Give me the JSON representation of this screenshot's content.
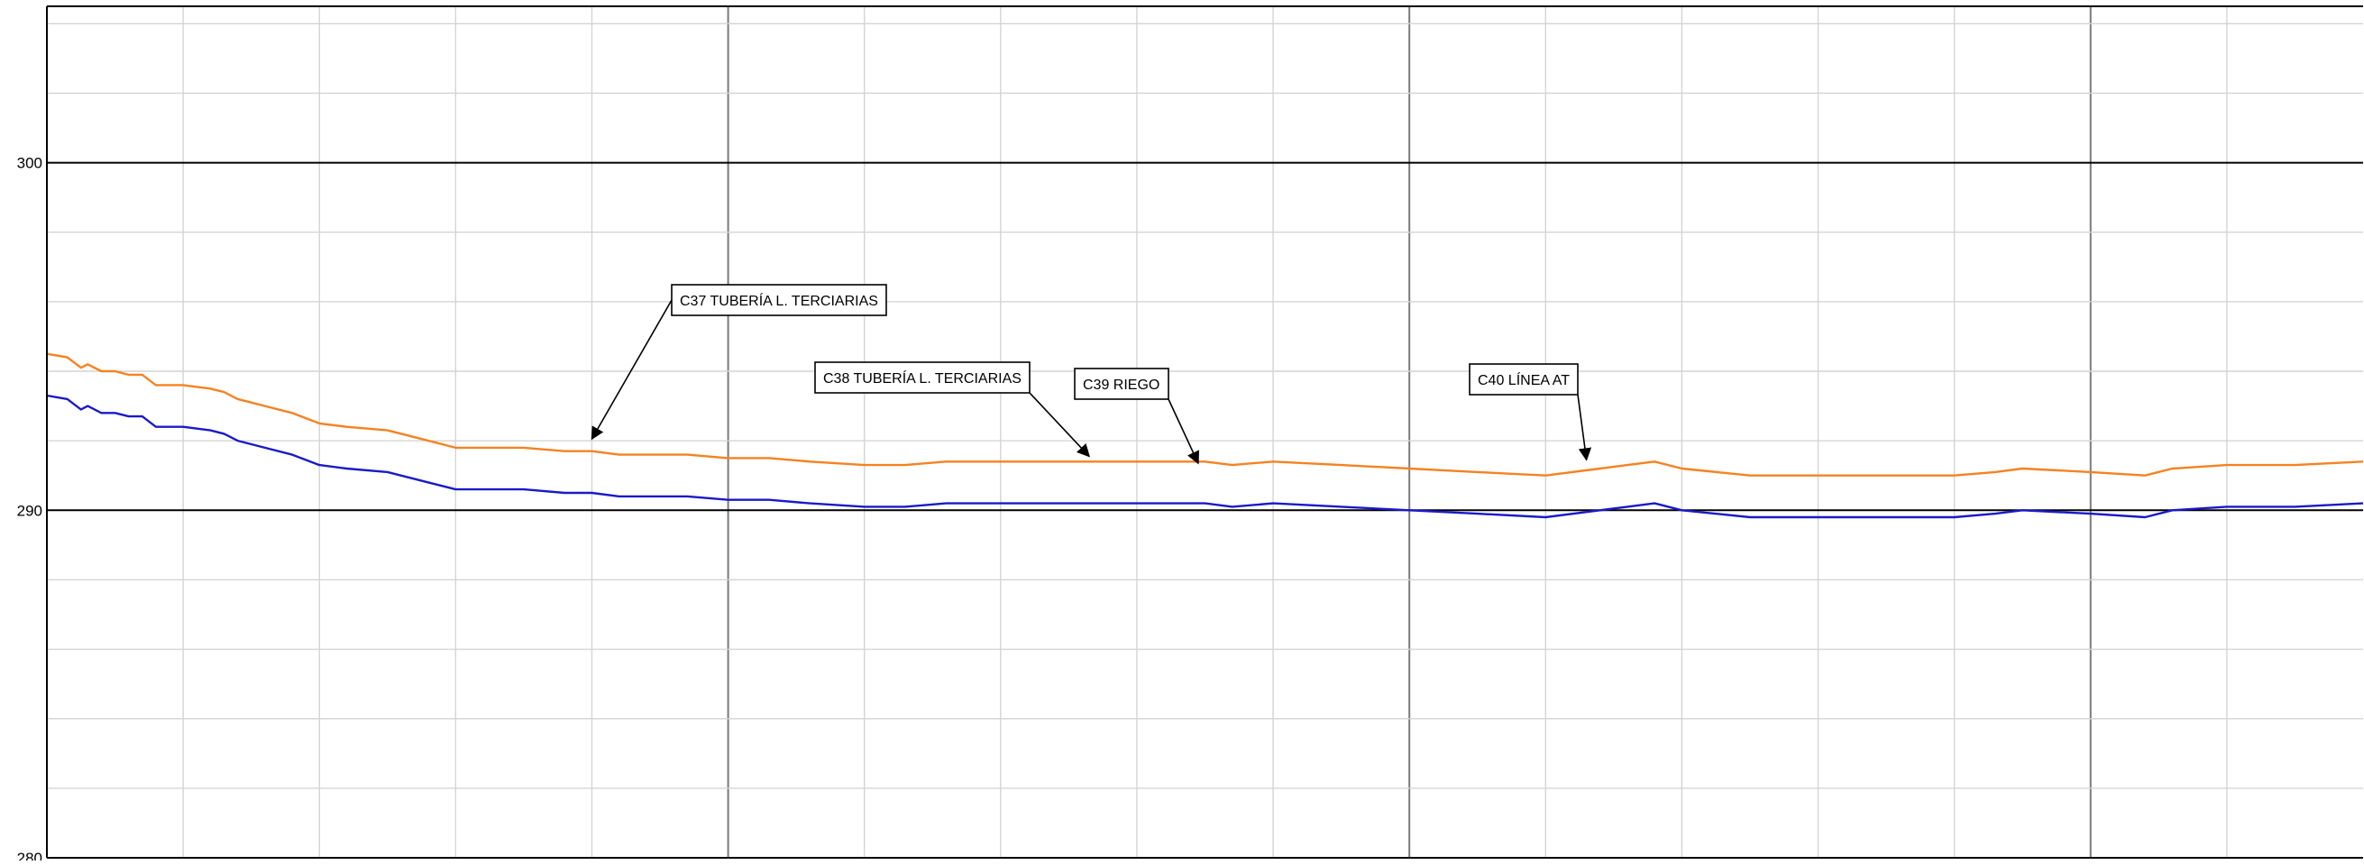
{
  "chart_data": {
    "type": "line",
    "title": "",
    "xlabel": "",
    "ylabel": "",
    "xlim": [
      0,
      1700
    ],
    "ylim": [
      280,
      304.5
    ],
    "y_ticks": [
      280,
      290,
      300
    ],
    "y_tick_labels": [
      "280",
      "290",
      "300"
    ],
    "grid": true,
    "series": [
      {
        "color": "#F58220",
        "x": [
          0,
          15,
          25,
          30,
          40,
          50,
          60,
          70,
          80,
          100,
          120,
          130,
          140,
          150,
          160,
          180,
          200,
          220,
          250,
          280,
          300,
          350,
          380,
          400,
          420,
          440,
          470,
          500,
          530,
          560,
          600,
          630,
          660,
          700,
          720,
          740,
          780,
          800,
          830,
          850,
          870,
          900,
          950,
          1000,
          1050,
          1100,
          1140,
          1160,
          1180,
          1200,
          1250,
          1300,
          1350,
          1400,
          1430,
          1450,
          1500,
          1540,
          1560,
          1600,
          1650,
          1700
        ],
        "values": [
          294.5,
          294.4,
          294.1,
          294.2,
          294.0,
          294.0,
          293.9,
          293.9,
          293.6,
          293.6,
          293.5,
          293.4,
          293.2,
          293.1,
          293.0,
          292.8,
          292.5,
          292.4,
          292.3,
          292.0,
          291.8,
          291.8,
          291.7,
          291.7,
          291.6,
          291.6,
          291.6,
          291.5,
          291.5,
          291.4,
          291.3,
          291.3,
          291.4,
          291.4,
          291.4,
          291.4,
          291.4,
          291.4,
          291.4,
          291.4,
          291.3,
          291.4,
          291.3,
          291.2,
          291.1,
          291.0,
          291.2,
          291.3,
          291.4,
          291.2,
          291.0,
          291.0,
          291.0,
          291.0,
          291.1,
          291.2,
          291.1,
          291.0,
          291.2,
          291.3,
          291.3,
          291.4
        ]
      },
      {
        "color": "#1A1AC8",
        "x": [
          0,
          15,
          25,
          30,
          40,
          50,
          60,
          70,
          80,
          100,
          120,
          130,
          140,
          150,
          160,
          180,
          200,
          220,
          250,
          280,
          300,
          350,
          380,
          400,
          420,
          440,
          470,
          500,
          530,
          560,
          600,
          630,
          660,
          700,
          720,
          740,
          780,
          800,
          830,
          850,
          870,
          900,
          950,
          1000,
          1050,
          1100,
          1140,
          1160,
          1180,
          1200,
          1250,
          1300,
          1350,
          1400,
          1430,
          1450,
          1500,
          1540,
          1560,
          1600,
          1650,
          1700
        ],
        "values": [
          293.3,
          293.2,
          292.9,
          293.0,
          292.8,
          292.8,
          292.7,
          292.7,
          292.4,
          292.4,
          292.3,
          292.2,
          292.0,
          291.9,
          291.8,
          291.6,
          291.3,
          291.2,
          291.1,
          290.8,
          290.6,
          290.6,
          290.5,
          290.5,
          290.4,
          290.4,
          290.4,
          290.3,
          290.3,
          290.2,
          290.1,
          290.1,
          290.2,
          290.2,
          290.2,
          290.2,
          290.2,
          290.2,
          290.2,
          290.2,
          290.1,
          290.2,
          290.1,
          290.0,
          289.9,
          289.8,
          290.0,
          290.1,
          290.2,
          290.0,
          289.8,
          289.8,
          289.8,
          289.8,
          289.9,
          290.0,
          289.9,
          289.8,
          290.0,
          290.1,
          290.1,
          290.2
        ]
      }
    ],
    "annotations": [
      {
        "text": "C37 TUBERÍA L. TERCIARIAS",
        "x": 400,
        "y": 292.0
      },
      {
        "text": "C38 TUBERÍA L. TERCIARIAS",
        "x": 765,
        "y": 291.5
      },
      {
        "text": "C39 RIEGO",
        "x": 845,
        "y": 291.3
      },
      {
        "text": "C40 LÍNEA AT",
        "x": 1130,
        "y": 291.4
      }
    ]
  }
}
